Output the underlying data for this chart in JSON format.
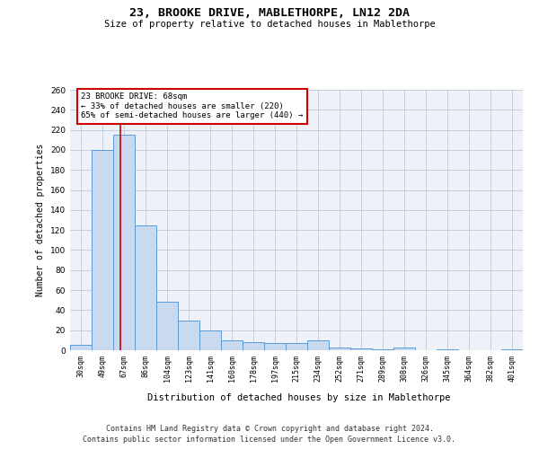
{
  "title1": "23, BROOKE DRIVE, MABLETHORPE, LN12 2DA",
  "title2": "Size of property relative to detached houses in Mablethorpe",
  "xlabel": "Distribution of detached houses by size in Mablethorpe",
  "ylabel": "Number of detached properties",
  "categories": [
    "30sqm",
    "49sqm",
    "67sqm",
    "86sqm",
    "104sqm",
    "123sqm",
    "141sqm",
    "160sqm",
    "178sqm",
    "197sqm",
    "215sqm",
    "234sqm",
    "252sqm",
    "271sqm",
    "289sqm",
    "308sqm",
    "326sqm",
    "345sqm",
    "364sqm",
    "382sqm",
    "401sqm"
  ],
  "values": [
    5,
    200,
    215,
    125,
    48,
    30,
    20,
    10,
    8,
    7,
    7,
    10,
    3,
    2,
    1,
    3,
    0,
    1,
    0,
    0,
    1
  ],
  "bar_color": "#c9d9f0",
  "bar_edge_color": "#5b9bd5",
  "bar_linewidth": 0.7,
  "property_line_x": 1.85,
  "annotation_text": "23 BROOKE DRIVE: 68sqm\n← 33% of detached houses are smaller (220)\n65% of semi-detached houses are larger (440) →",
  "annotation_box_color": "#ffffff",
  "annotation_edge_color": "#cc0000",
  "property_line_color": "#cc0000",
  "grid_color": "#c0c8d8",
  "background_color": "#eef2f8",
  "ylim": [
    0,
    260
  ],
  "yticks": [
    0,
    20,
    40,
    60,
    80,
    100,
    120,
    140,
    160,
    180,
    200,
    220,
    240,
    260
  ],
  "footer1": "Contains HM Land Registry data © Crown copyright and database right 2024.",
  "footer2": "Contains public sector information licensed under the Open Government Licence v3.0."
}
